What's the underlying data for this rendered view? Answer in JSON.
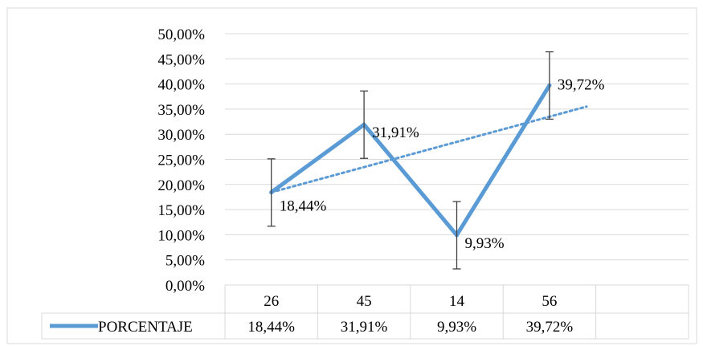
{
  "chart_data": {
    "type": "line",
    "categories": [
      "26",
      "45",
      "14",
      "56"
    ],
    "series": [
      {
        "name": "PORCENTAJE",
        "values": [
          18.44,
          31.91,
          9.93,
          39.72
        ],
        "labels": [
          "18,44%",
          "31,91%",
          "9,93%",
          "39,72%"
        ],
        "error_low": [
          11.7,
          25.2,
          3.2,
          33.0
        ],
        "error_high": [
          25.1,
          38.6,
          16.6,
          46.4
        ]
      }
    ],
    "trendline": {
      "type": "linear",
      "style": "dotted",
      "start": 18.44,
      "end": 35.5
    },
    "ylim": [
      0,
      50
    ],
    "ytick_step": 5,
    "ytick_labels": [
      "0,00%",
      "5,00%",
      "10,00%",
      "15,00%",
      "20,00%",
      "25,00%",
      "30,00%",
      "35,00%",
      "40,00%",
      "45,00%",
      "50,00%"
    ],
    "grid": true,
    "legend_placement": "data-table",
    "colors": {
      "series": "#5b9bd5",
      "trend": "#5b9bd5",
      "error": "#404040",
      "grid": "#d9d9d9"
    }
  }
}
